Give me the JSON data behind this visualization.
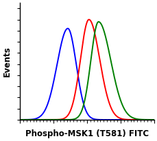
{
  "title": "",
  "xlabel": "Phospho-MSK1 (T581) FITC",
  "ylabel": "Events",
  "xlabel_fontsize": 8.5,
  "ylabel_fontsize": 8.5,
  "xlabel_fontweight": "bold",
  "ylabel_fontweight": "bold",
  "background_color": "#ffffff",
  "plot_bg_color": "#ffffff",
  "blue": {
    "color": "#0000ff",
    "mean": 2.75,
    "std": 0.28,
    "std2": 0.22,
    "peak": 0.82,
    "linewidth": 1.4
  },
  "red": {
    "color": "#ff0000",
    "mean": 3.3,
    "std": 0.22,
    "std2": 0.28,
    "peak": 0.9,
    "linewidth": 1.4
  },
  "green": {
    "color": "#008000",
    "mean": 3.55,
    "std": 0.2,
    "std2": 0.32,
    "peak": 0.88,
    "linewidth": 1.4
  },
  "xlim": [
    1.5,
    5.0
  ],
  "ylim": [
    0,
    1.05
  ],
  "figsize": [
    2.29,
    2.06
  ],
  "dpi": 100
}
